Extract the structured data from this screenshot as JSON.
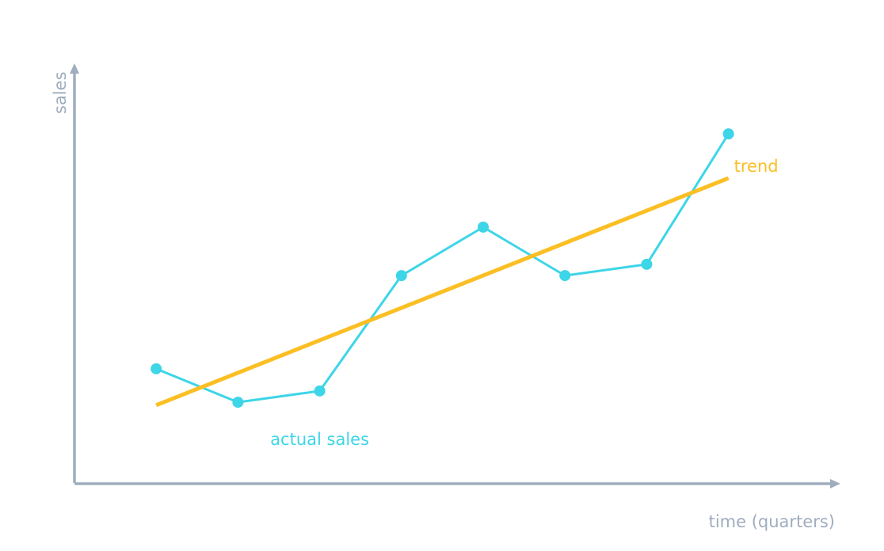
{
  "chart_data": {
    "type": "line",
    "x_label": "time (quarters)",
    "y_label": "sales",
    "xlim": [
      0,
      9.36
    ],
    "ylim": [
      0,
      100
    ],
    "axis_color": "#9fadbf",
    "series": [
      {
        "name": "actual sales",
        "color": "#3dd5e8",
        "x": [
          1,
          2,
          3,
          4,
          5,
          6,
          7,
          8
        ],
        "values": [
          27.3,
          19.3,
          22.0,
          49.6,
          61.2,
          49.6,
          52.3,
          83.5
        ],
        "markers": true
      },
      {
        "name": "trend",
        "color": "#fbbf24",
        "x": [
          1,
          8
        ],
        "values": [
          18.6,
          72.9
        ],
        "markers": false
      }
    ]
  }
}
